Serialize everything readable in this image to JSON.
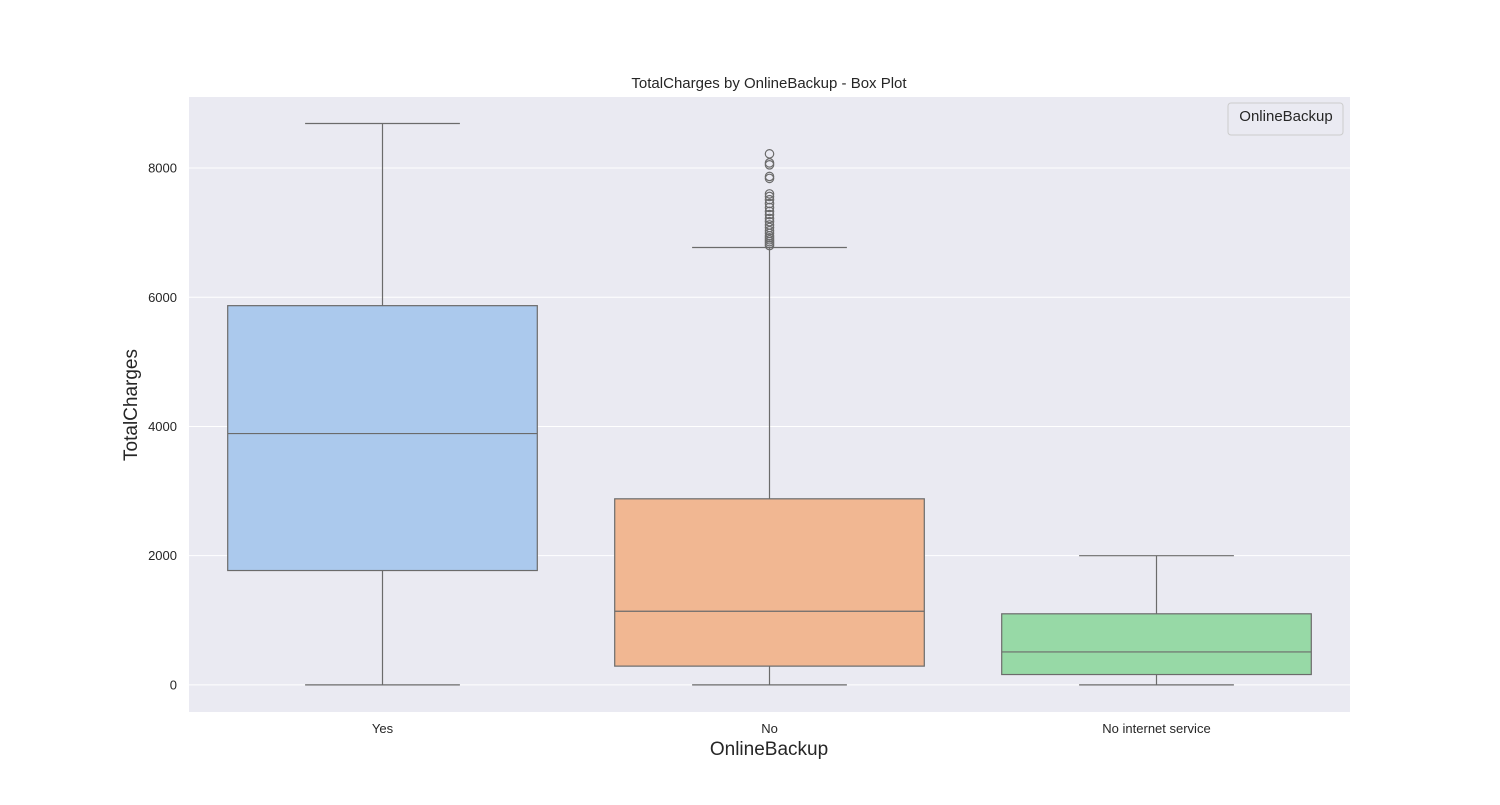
{
  "chart_data": {
    "type": "box",
    "title": "TotalCharges by OnlineBackup - Box Plot",
    "xlabel": "OnlineBackup",
    "ylabel": "TotalCharges",
    "ylim": [
      -420,
      9100
    ],
    "y_ticks": [
      "0",
      "2000",
      "4000",
      "6000",
      "8000"
    ],
    "grid": true,
    "legend": {
      "title": "OnlineBackup",
      "placement": "top-right"
    },
    "categories": [
      "Yes",
      "No",
      "No internet service"
    ],
    "colors": [
      "#abc9ed",
      "#f1b792",
      "#97d9a6"
    ],
    "line_color": "#6b6b6b",
    "background_color": "#eaeaf2",
    "grid_color": "#ffffff",
    "boxes": [
      {
        "category": "Yes",
        "whisker_low": 0,
        "q1": 1770,
        "median": 3890,
        "q3": 5870,
        "whisker_high": 8690,
        "outliers": []
      },
      {
        "category": "No",
        "whisker_low": 0,
        "q1": 290,
        "median": 1140,
        "q3": 2880,
        "whisker_high": 6770,
        "outliers": [
          6800,
          6830,
          6860,
          6890,
          6920,
          6950,
          6990,
          7030,
          7080,
          7120,
          7170,
          7220,
          7280,
          7330,
          7390,
          7450,
          7510,
          7560,
          7600,
          7840,
          7870,
          8050,
          8080,
          8220
        ]
      },
      {
        "category": "No internet service",
        "whisker_low": 0,
        "q1": 160,
        "median": 510,
        "q3": 1100,
        "whisker_high": 2000,
        "outliers": []
      }
    ]
  }
}
